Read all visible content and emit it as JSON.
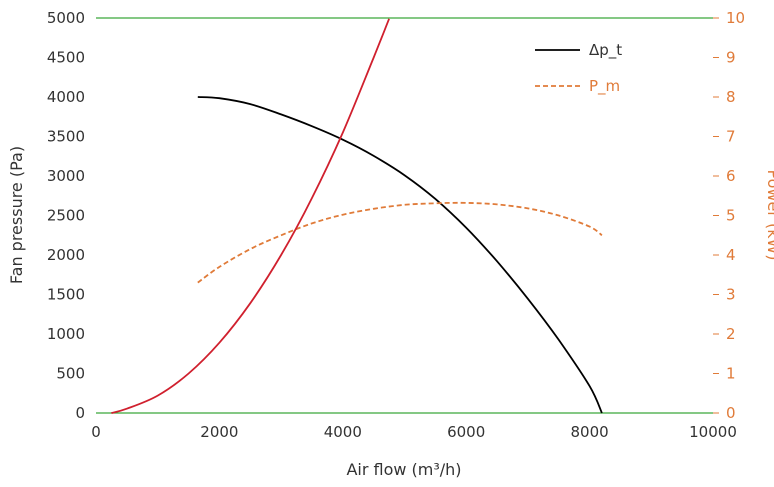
{
  "chart_data": {
    "type": "line",
    "title": "",
    "xlabel": "Air flow (m³/h)",
    "ylabel_left": "Fan pressure (Pa)",
    "ylabel_right": "Power (kW)",
    "xlim": [
      0,
      10000
    ],
    "ylim_left": [
      0,
      5000
    ],
    "ylim_right": [
      0,
      10
    ],
    "x_ticks": [
      0,
      2000,
      4000,
      6000,
      8000,
      10000
    ],
    "y_left_ticks": [
      0,
      500,
      1000,
      1500,
      2000,
      2500,
      3000,
      3500,
      4000,
      4500,
      5000
    ],
    "y_right_ticks": [
      0,
      1,
      2,
      3,
      4,
      5,
      6,
      7,
      8,
      9,
      10
    ],
    "gridlines": [
      0,
      5000
    ],
    "legend_position": "top-right",
    "colors": {
      "pressure": "#000000",
      "power": "#e07b39",
      "system": "#d0202e",
      "grid": "#3aa83a",
      "right_axis": "#e07b39"
    },
    "series": [
      {
        "name": "Δp_t",
        "axis": "left",
        "style": "solid",
        "x": [
          1650,
          2000,
          2500,
          3000,
          3500,
          4000,
          4500,
          5000,
          5500,
          6000,
          6500,
          7000,
          7500,
          8000,
          8200
        ],
        "y": [
          4000,
          3985,
          3910,
          3780,
          3630,
          3460,
          3255,
          3010,
          2710,
          2345,
          1920,
          1445,
          925,
          340,
          0
        ]
      },
      {
        "name": "P_m",
        "axis": "right",
        "style": "dashed",
        "x": [
          1650,
          2000,
          2500,
          3000,
          3500,
          4000,
          4500,
          5000,
          5500,
          6000,
          6500,
          7000,
          7500,
          8000,
          8200
        ],
        "y": [
          3.3,
          3.7,
          4.15,
          4.5,
          4.8,
          5.02,
          5.17,
          5.27,
          5.31,
          5.32,
          5.28,
          5.18,
          5.0,
          4.72,
          4.5
        ]
      },
      {
        "axis": "left",
        "style": "solid",
        "x": [
          250,
          500,
          1000,
          1500,
          2000,
          2500,
          3000,
          3500,
          4000,
          4500,
          4750
        ],
        "y": [
          0,
          55,
          220,
          500,
          890,
          1390,
          2000,
          2720,
          3550,
          4500,
          4990
        ]
      }
    ]
  }
}
